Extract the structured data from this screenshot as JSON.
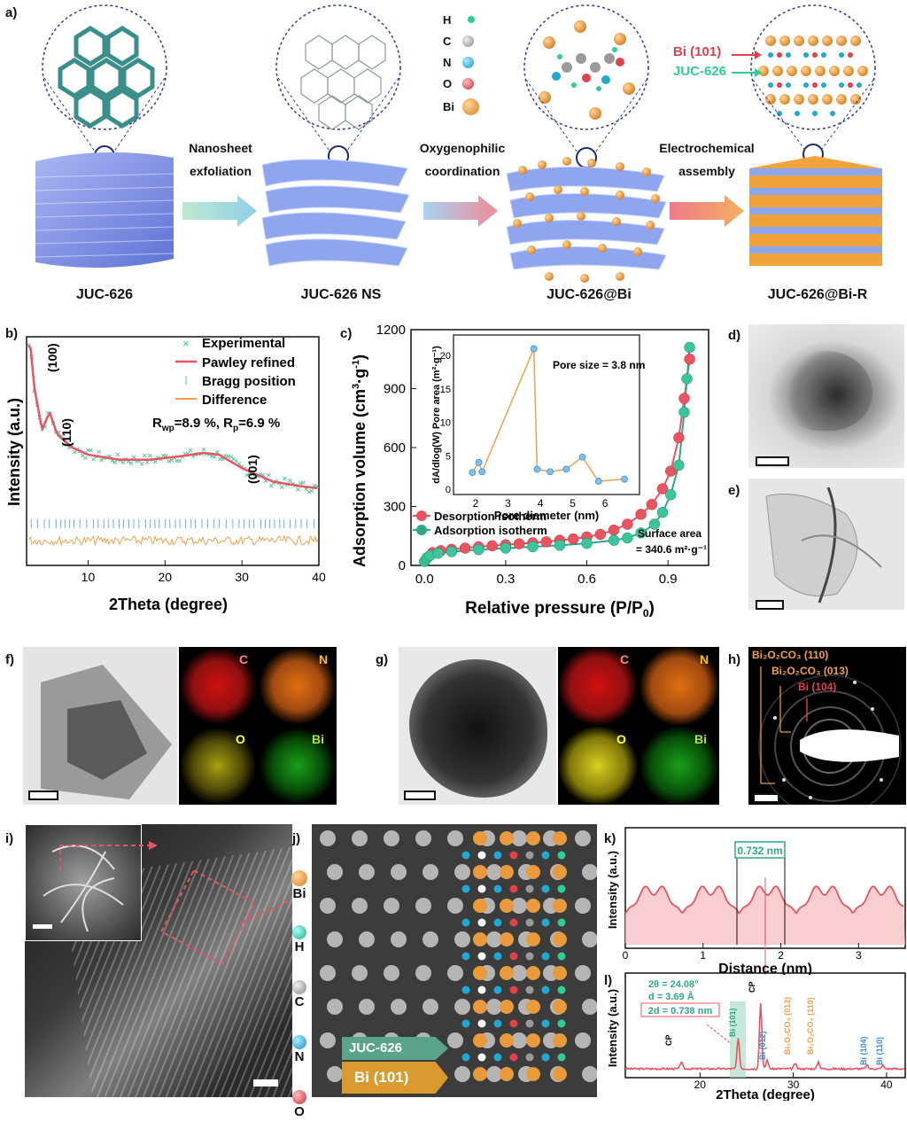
{
  "panel_a": {
    "label": "a)",
    "stages": [
      "JUC-626",
      "JUC-626 NS",
      "JUC-626@Bi",
      "JUC-626@Bi-R"
    ],
    "arrows": [
      {
        "line1": "Nanosheet",
        "line2": "exfoliation"
      },
      {
        "line1": "Oxygenophilic",
        "line2": "coordination"
      },
      {
        "line1": "Electrochemical",
        "line2": "assembly"
      }
    ],
    "legend": [
      {
        "sym": "H",
        "color": "#2ecc9a"
      },
      {
        "sym": "C",
        "color": "#9a9a9a"
      },
      {
        "sym": "N",
        "color": "#21a9d4"
      },
      {
        "sym": "O",
        "color": "#e0414b"
      },
      {
        "sym": "Bi",
        "color": "#e89a3c"
      }
    ],
    "bi_label": "Bi (101)",
    "juc_label": "JUC-626"
  },
  "panel_b": {
    "label": "b)",
    "legend": [
      "Experimental",
      "Pawley refined",
      "Bragg position",
      "Difference"
    ],
    "stats": "R",
    "stats_wp": "wp",
    "stats_wp_val": "=8.9 %, R",
    "stats_p": "p",
    "stats_p_val": "=6.9 %",
    "peaks": [
      "(100)",
      "(110)",
      "(001)"
    ],
    "xlabel": "2Theta (degree)",
    "ylabel": "Intensity (a.u.)",
    "xticks": [
      "10",
      "20",
      "30",
      "40"
    ]
  },
  "panel_c": {
    "label": "c)",
    "ylabel_main": "Adsorption volume (cm",
    "ylabel_sup1": "3",
    "ylabel_mid": "·g",
    "ylabel_sup2": "-1",
    "ylabel_end": ")",
    "xlabel": "Relative pressure (P/P",
    "xlabel_sub": "0",
    "xlabel_end": ")",
    "yticks": [
      "0",
      "300",
      "600",
      "900",
      "1200"
    ],
    "xticks": [
      "0.0",
      "0.3",
      "0.6",
      "0.9"
    ],
    "legend": [
      "Desorption isotherm",
      "Adsorption isotherm"
    ],
    "surface1": "Surface area",
    "surface2": "= 340.6 m²·g⁻¹",
    "inset": {
      "ylabel": "dA/dlog(W) Pore area (m²·g⁻¹)",
      "xlabel": "Pore diameter (nm)",
      "pore_size": "Pore size = 3.8 nm",
      "xticks": [
        "2",
        "3",
        "4",
        "5",
        "6"
      ],
      "yticks": [
        "0",
        "5",
        "10",
        "15",
        "20"
      ]
    }
  },
  "panel_d": {
    "label": "d)"
  },
  "panel_e": {
    "label": "e)"
  },
  "panel_f": {
    "label": "f)",
    "maps": [
      "C",
      "N",
      "O",
      "Bi"
    ]
  },
  "panel_g": {
    "label": "g)",
    "maps": [
      "C",
      "N",
      "O",
      "Bi"
    ]
  },
  "panel_h": {
    "label": "h)",
    "rings": [
      "Bi₂O₂CO₃ (110)",
      "Bi₂O₂CO₃ (013)",
      "Bi (104)"
    ]
  },
  "panel_i": {
    "label": "i)"
  },
  "panel_j": {
    "label": "j)",
    "elements": [
      "Bi",
      "H",
      "C",
      "N",
      "O"
    ],
    "tag_juc": "JUC-626",
    "tag_bi": "Bi (101)"
  },
  "panel_k": {
    "label": "k)",
    "spacing": "0.732 nm",
    "xlabel": "Distance (nm)",
    "ylabel": "Intensity (a.u.)",
    "xticks": [
      "0",
      "1",
      "2",
      "3"
    ]
  },
  "panel_l": {
    "label": "l)",
    "ann1": "2θ = 24.08°",
    "ann2": "d = 3.69 Å",
    "ann3": "2d = 0.738 nm",
    "xlabel": "2Theta (degree)",
    "ylabel": "Intensity (a.u.)",
    "xticks": [
      "20",
      "30",
      "40"
    ],
    "peaks": [
      "CP",
      "Bi (101)",
      "CP",
      "Bi (012)",
      "Bi₂O₂CO₃ (013)",
      "Bi₂O₂CO₃ (110)",
      "Bi (104)",
      "Bi (110)"
    ]
  },
  "chart_data": [
    {
      "type": "line",
      "panel": "b",
      "xlabel": "2Theta (degree)",
      "ylabel": "Intensity (a.u.)",
      "xlim": [
        2,
        40
      ],
      "x": [
        2.5,
        3,
        4,
        5,
        6,
        8,
        10,
        14,
        18,
        22,
        25,
        27,
        30,
        34,
        38,
        40
      ],
      "series": [
        {
          "name": "Pawley refined",
          "values": [
            0.95,
            0.7,
            0.45,
            0.55,
            0.42,
            0.34,
            0.3,
            0.27,
            0.27,
            0.29,
            0.31,
            0.3,
            0.22,
            0.14,
            0.11,
            0.1
          ]
        }
      ]
    },
    {
      "type": "scatter",
      "panel": "c",
      "xlabel": "Relative pressure (P/P0)",
      "ylabel": "Adsorption volume (cm3·g-1)",
      "xlim": [
        -0.05,
        1.05
      ],
      "ylim": [
        0,
        1200
      ],
      "series": [
        {
          "name": "Desorption isotherm",
          "x": [
            0.03,
            0.06,
            0.1,
            0.15,
            0.2,
            0.25,
            0.3,
            0.35,
            0.4,
            0.45,
            0.5,
            0.55,
            0.6,
            0.65,
            0.7,
            0.75,
            0.8,
            0.84,
            0.88,
            0.91,
            0.94,
            0.96,
            0.98
          ],
          "values": [
            65,
            75,
            82,
            88,
            95,
            100,
            105,
            110,
            115,
            120,
            128,
            135,
            145,
            158,
            180,
            210,
            260,
            310,
            390,
            480,
            650,
            850,
            1050
          ]
        },
        {
          "name": "Adsorption isotherm",
          "x": [
            0.0,
            0.005,
            0.01,
            0.02,
            0.05,
            0.1,
            0.2,
            0.3,
            0.4,
            0.5,
            0.6,
            0.7,
            0.75,
            0.8,
            0.85,
            0.88,
            0.91,
            0.94,
            0.96,
            0.97,
            0.98
          ],
          "values": [
            20,
            30,
            40,
            50,
            62,
            70,
            80,
            88,
            95,
            102,
            112,
            128,
            140,
            165,
            210,
            270,
            360,
            510,
            780,
            950,
            1110
          ]
        }
      ]
    },
    {
      "type": "line",
      "panel": "c-inset",
      "xlabel": "Pore diameter (nm)",
      "ylabel": "dA/dlog(W) Pore area (m²·g⁻¹)",
      "x": [
        1.9,
        2.1,
        2.2,
        3.8,
        3.9,
        4.3,
        4.8,
        5.3,
        5.8,
        6.6
      ],
      "values": [
        2.5,
        4.0,
        2.6,
        21.0,
        3.0,
        2.6,
        3.0,
        4.8,
        1.2,
        1.5
      ]
    }
  ]
}
